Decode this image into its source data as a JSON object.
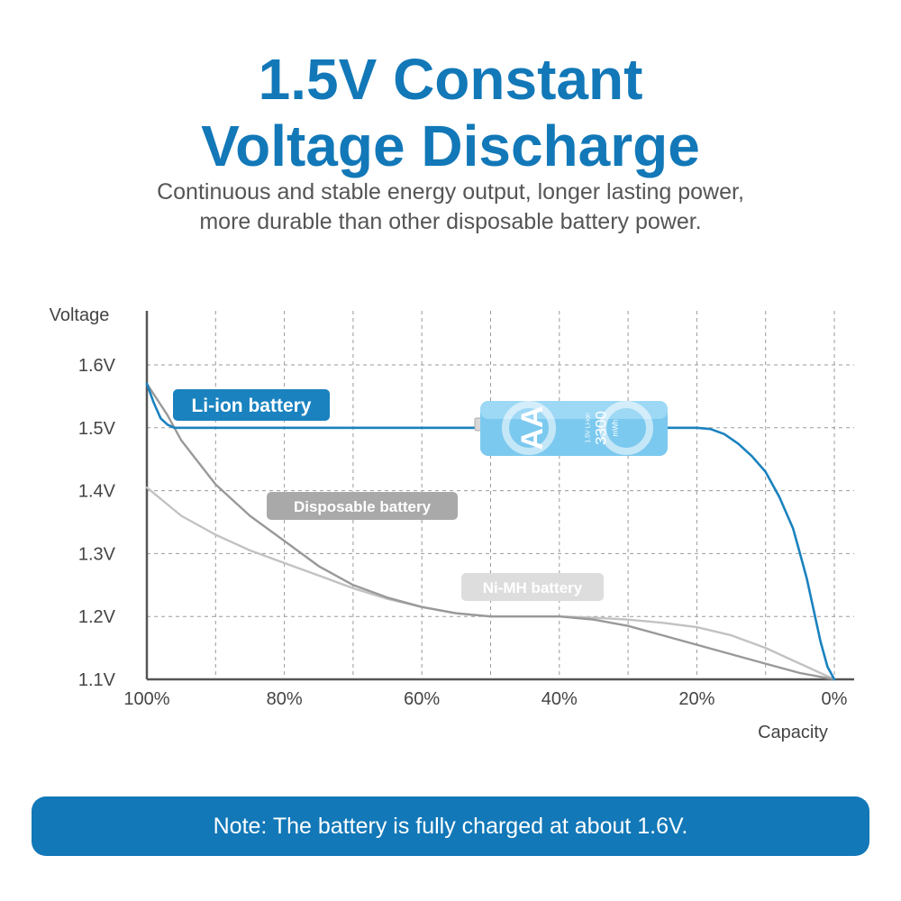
{
  "header": {
    "title_line1": "1.5V Constant",
    "title_line2": "Voltage Discharge",
    "subtitle_line1": "Continuous and stable energy output, longer lasting power,",
    "subtitle_line2": "more durable than other disposable battery power."
  },
  "chart_data": {
    "type": "line",
    "ylabel": "Voltage",
    "xlabel": "Capacity",
    "x_ticks": [
      "100%",
      "80%",
      "60%",
      "40%",
      "20%",
      "0%"
    ],
    "y_ticks": [
      "1.6V",
      "1.5V",
      "1.4V",
      "1.3V",
      "1.2V",
      "1.1V"
    ],
    "xlim": [
      100,
      0
    ],
    "ylim": [
      1.1,
      1.66
    ],
    "grid": true,
    "series": [
      {
        "name": "Li-ion battery",
        "color": "#1a82bf",
        "x": [
          100,
          99,
          98,
          97,
          96,
          95,
          90,
          80,
          70,
          60,
          50,
          40,
          30,
          22,
          20,
          18,
          16,
          14,
          12,
          10,
          8,
          6,
          5,
          4,
          3,
          2,
          1,
          0
        ],
        "y": [
          1.57,
          1.54,
          1.515,
          1.505,
          1.5,
          1.5,
          1.5,
          1.5,
          1.5,
          1.5,
          1.5,
          1.5,
          1.5,
          1.5,
          1.5,
          1.498,
          1.49,
          1.475,
          1.455,
          1.43,
          1.39,
          1.34,
          1.3,
          1.26,
          1.21,
          1.16,
          1.12,
          1.1
        ]
      },
      {
        "name": "Disposable battery",
        "color": "#999999",
        "x": [
          100,
          97,
          95,
          90,
          85,
          80,
          75,
          70,
          65,
          60,
          55,
          50,
          45,
          40,
          35,
          30,
          25,
          20,
          15,
          10,
          5,
          0
        ],
        "y": [
          1.57,
          1.52,
          1.48,
          1.41,
          1.36,
          1.32,
          1.28,
          1.25,
          1.23,
          1.215,
          1.205,
          1.2,
          1.2,
          1.2,
          1.195,
          1.185,
          1.17,
          1.155,
          1.14,
          1.125,
          1.11,
          1.1
        ]
      },
      {
        "name": "Ni-MH battery",
        "color": "#c2c2c2",
        "x": [
          100,
          95,
          90,
          85,
          80,
          75,
          70,
          65,
          60,
          55,
          50,
          45,
          40,
          35,
          30,
          25,
          20,
          15,
          10,
          5,
          0
        ],
        "y": [
          1.405,
          1.36,
          1.33,
          1.305,
          1.285,
          1.265,
          1.245,
          1.228,
          1.215,
          1.205,
          1.2,
          1.2,
          1.2,
          1.198,
          1.195,
          1.19,
          1.183,
          1.17,
          1.15,
          1.125,
          1.1
        ]
      }
    ],
    "battery": {
      "size": "AA",
      "capacity": "3300",
      "unit": "mWh",
      "type_label": "1.5V Li-ion"
    }
  },
  "note": {
    "text": "Note: The battery is fully charged at about 1.6V."
  }
}
